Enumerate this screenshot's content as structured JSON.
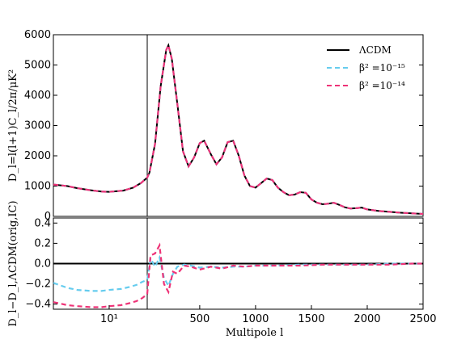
{
  "chart_data": [
    {
      "type": "line",
      "panel": "top",
      "ylabel": "D_l=l(l+1)C_l/2π/μK²",
      "ylim": [
        0,
        6000
      ],
      "y_ticks": [
        "0",
        "1000",
        "2000",
        "3000",
        "4000",
        "5000",
        "6000"
      ],
      "x_scale": "log-then-linear (split at l≈30)",
      "legend": {
        "placement": "top-right",
        "entries": [
          "ΛCDM",
          "β² =10⁻¹⁵",
          "β² =10⁻¹⁴"
        ]
      },
      "x": [
        2,
        3,
        4,
        6,
        8,
        10,
        15,
        20,
        25,
        30,
        50,
        100,
        150,
        200,
        220,
        250,
        300,
        350,
        400,
        450,
        500,
        540,
        600,
        650,
        700,
        750,
        800,
        850,
        900,
        950,
        1000,
        1050,
        1100,
        1150,
        1200,
        1250,
        1300,
        1350,
        1400,
        1450,
        1500,
        1550,
        1600,
        1650,
        1700,
        1750,
        1800,
        1850,
        1900,
        1950,
        2000,
        2100,
        2200,
        2300,
        2400,
        2500
      ],
      "series": [
        {
          "name": "ΛCDM",
          "color": "#000000",
          "style": "solid",
          "values": [
            1050,
            1000,
            930,
            860,
            820,
            810,
            850,
            950,
            1100,
            1280,
            1450,
            2400,
            4300,
            5500,
            5650,
            5200,
            3700,
            2150,
            1650,
            1950,
            2420,
            2500,
            2050,
            1720,
            1950,
            2450,
            2500,
            2000,
            1350,
            1000,
            950,
            1100,
            1250,
            1200,
            950,
            800,
            700,
            720,
            800,
            780,
            560,
            450,
            400,
            420,
            450,
            380,
            300,
            260,
            270,
            290,
            230,
            180,
            150,
            120,
            100,
            80
          ]
        },
        {
          "name": "β² =10⁻¹⁵",
          "color": "#66ccee",
          "style": "dashed",
          "values": [
            1050,
            1000,
            930,
            860,
            820,
            810,
            850,
            950,
            1100,
            1280,
            1450,
            2400,
            4300,
            5500,
            5650,
            5200,
            3700,
            2150,
            1650,
            1950,
            2420,
            2500,
            2050,
            1720,
            1950,
            2450,
            2500,
            2000,
            1350,
            1000,
            950,
            1100,
            1250,
            1200,
            950,
            800,
            700,
            720,
            800,
            780,
            560,
            450,
            400,
            420,
            450,
            380,
            300,
            260,
            270,
            290,
            230,
            180,
            150,
            120,
            100,
            80
          ]
        },
        {
          "name": "β² =10⁻¹⁴",
          "color": "#ee3377",
          "style": "dashed",
          "values": [
            1050,
            1000,
            930,
            860,
            820,
            810,
            850,
            950,
            1100,
            1280,
            1450,
            2400,
            4300,
            5500,
            5650,
            5200,
            3700,
            2150,
            1650,
            1950,
            2420,
            2500,
            2050,
            1720,
            1950,
            2450,
            2500,
            2000,
            1350,
            1000,
            950,
            1100,
            1250,
            1200,
            950,
            800,
            700,
            720,
            800,
            780,
            560,
            450,
            400,
            420,
            450,
            380,
            300,
            260,
            270,
            290,
            230,
            180,
            150,
            120,
            100,
            80
          ]
        }
      ]
    },
    {
      "type": "line",
      "panel": "bottom",
      "xlabel": "Multipole l",
      "ylabel": "D_l−D_l,ΛCDM(orig,IC)",
      "ylim": [
        -0.45,
        0.45
      ],
      "y_ticks": [
        "−0.4",
        "−0.2",
        "0.0",
        "0.2",
        "0.4"
      ],
      "x_ticks_log": [
        "10¹"
      ],
      "x_ticks_linear": [
        "500",
        "1000",
        "1500",
        "2000",
        "2500"
      ],
      "x": [
        2,
        3,
        4,
        6,
        8,
        10,
        14,
        18,
        22,
        26,
        30,
        60,
        100,
        140,
        180,
        220,
        260,
        300,
        360,
        420,
        500,
        600,
        700,
        800,
        900,
        1000,
        1200,
        1400,
        1600,
        1800,
        2000,
        2200,
        2400,
        2500
      ],
      "series": [
        {
          "name": "ΛCDM",
          "color": "#000000",
          "style": "solid",
          "values": [
            0,
            0,
            0,
            0,
            0,
            0,
            0,
            0,
            0,
            0,
            0,
            0,
            0,
            0,
            0,
            0,
            0,
            0,
            0,
            0,
            0,
            0,
            0,
            0,
            0,
            0,
            0,
            0,
            0,
            0,
            0,
            0,
            0,
            0
          ]
        },
        {
          "name": "β² =10⁻¹⁵",
          "color": "#66ccee",
          "style": "dashed",
          "values": [
            -0.19,
            -0.24,
            -0.26,
            -0.27,
            -0.27,
            -0.26,
            -0.25,
            -0.23,
            -0.21,
            -0.18,
            -0.16,
            0.05,
            -0.03,
            0.06,
            -0.14,
            -0.22,
            -0.1,
            -0.03,
            -0.01,
            -0.02,
            -0.04,
            -0.03,
            -0.04,
            -0.03,
            -0.03,
            -0.02,
            -0.02,
            -0.01,
            -0.01,
            -0.01,
            -0.01,
            0,
            0,
            0
          ]
        },
        {
          "name": "β² =10⁻¹⁴",
          "color": "#ee3377",
          "style": "dashed",
          "values": [
            -0.38,
            -0.41,
            -0.42,
            -0.43,
            -0.43,
            -0.42,
            -0.41,
            -0.39,
            -0.37,
            -0.34,
            -0.3,
            0.08,
            0.1,
            0.18,
            -0.2,
            -0.28,
            -0.08,
            -0.1,
            -0.02,
            -0.03,
            -0.06,
            -0.03,
            -0.05,
            -0.02,
            -0.03,
            -0.02,
            -0.02,
            -0.02,
            -0.01,
            -0.01,
            -0.01,
            -0.01,
            0,
            0
          ]
        }
      ]
    }
  ]
}
